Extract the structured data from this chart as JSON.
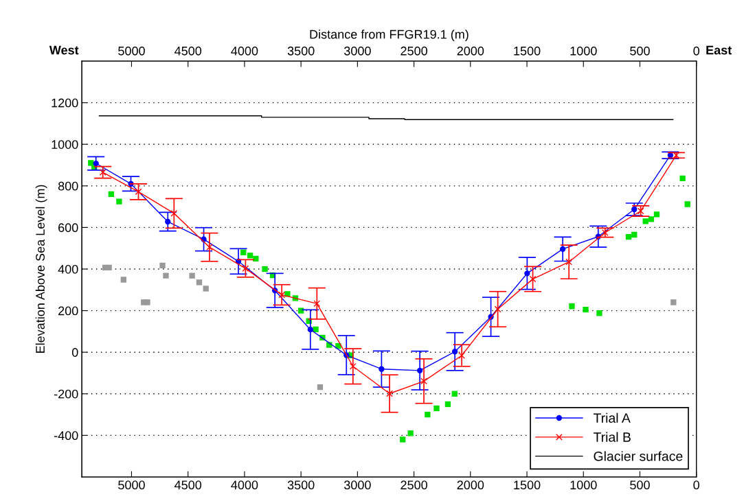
{
  "chart_data": {
    "type": "line",
    "ylabel": "Elevation Above Sea Level (m)",
    "x2label": "Distance from FFGR19.1 (m)",
    "annotations": [
      "West",
      "East"
    ],
    "xlim": [
      5440,
      0
    ],
    "xticks": [
      5000,
      4500,
      4000,
      3500,
      3000,
      2500,
      2000,
      1500,
      1000,
      500,
      0
    ],
    "x2lim": [
      5440,
      0
    ],
    "x2ticks": [
      5000,
      4500,
      4000,
      3500,
      3000,
      2500,
      2000,
      1500,
      1000,
      500,
      0
    ],
    "ylim": [
      -600,
      1400
    ],
    "yticks": [
      -400,
      -200,
      0,
      200,
      400,
      600,
      800,
      1000,
      1200
    ],
    "grid": "y",
    "legend": "bottom right",
    "series": [
      {
        "type": "scatter",
        "color": "#00e000",
        "marker": "square",
        "x": [
          5360,
          5330,
          5180,
          5110,
          4010,
          3950,
          3900,
          3820,
          3750,
          3620,
          3550,
          3500,
          3430,
          3370,
          3310,
          3250,
          3170,
          3060,
          2600,
          2530,
          2380,
          2300,
          2200,
          2140,
          1102,
          980,
          859,
          600,
          550,
          450,
          400,
          351,
          122,
          79
        ],
        "values": [
          910,
          890,
          760,
          725,
          480,
          465,
          450,
          400,
          370,
          280,
          260,
          200,
          150,
          110,
          70,
          35,
          30,
          -15,
          -420,
          -390,
          -300,
          -270,
          -250,
          -200,
          221,
          205,
          188,
          555,
          565,
          630,
          640,
          663,
          836,
          712
        ]
      },
      {
        "type": "scatter",
        "color": "#999999",
        "marker": "square",
        "x": [
          5233,
          5200,
          5071,
          4892,
          4860,
          4726,
          4696,
          4464,
          4401,
          4342,
          3331,
          203
        ],
        "values": [
          407,
          407,
          349,
          240,
          240,
          417,
          368,
          368,
          336,
          306,
          -168,
          240
        ]
      },
      {
        "name": "Trial A",
        "color": "#0000ff",
        "marker": "circle",
        "x": [
          5315,
          5006,
          4679,
          4361,
          4054,
          3731,
          3417,
          3098,
          2787,
          2448,
          2138,
          1819,
          1498,
          1183,
          869,
          550,
          230
        ],
        "values": [
          908,
          810,
          628,
          543,
          437,
          297,
          109,
          -14,
          -81,
          -88,
          3,
          170,
          379,
          496,
          556,
          687,
          947
        ],
        "errors": [
          32,
          35,
          45,
          56,
          61,
          82,
          95,
          94,
          87,
          93,
          91,
          94,
          77,
          58,
          51,
          30,
          16
        ]
      },
      {
        "name": "Trial B",
        "color": "#ff0000",
        "marker": "cross",
        "x": [
          5254,
          4939,
          4624,
          4310,
          3991,
          3670,
          3359,
          3040,
          2716,
          2412,
          2077,
          1758,
          1448,
          1128,
          808,
          493,
          178
        ],
        "values": [
          865,
          772,
          668,
          505,
          403,
          276,
          234,
          -68,
          -199,
          -139,
          -16,
          207,
          352,
          434,
          575,
          679,
          947
        ],
        "errors": [
          28,
          38,
          71,
          68,
          42,
          49,
          75,
          85,
          90,
          107,
          52,
          85,
          60,
          81,
          22,
          25,
          13
        ]
      },
      {
        "name": "Glacier surface",
        "color": "#000000",
        "marker": "none",
        "x": [
          5286,
          3849,
          3849,
          2899,
          2899,
          2582,
          2582,
          207
        ],
        "values": [
          1137,
          1137,
          1130,
          1130,
          1123,
          1123,
          1119,
          1119
        ]
      }
    ]
  }
}
